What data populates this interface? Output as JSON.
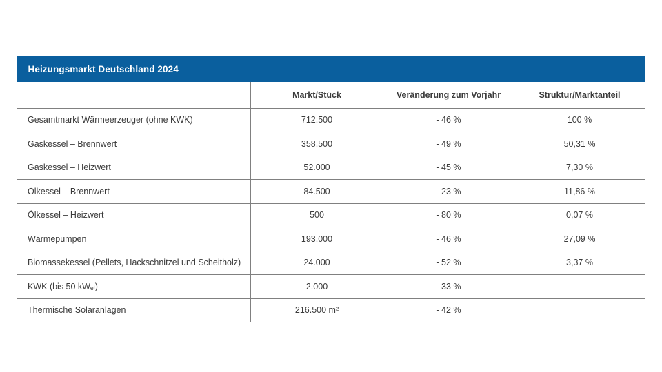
{
  "title": "Heizungsmarkt Deutschland 2024",
  "columns": {
    "col0": "",
    "col1": "Markt/Stück",
    "col2": "Veränderung zum Vorjahr",
    "col3": "Struktur/Marktanteil"
  },
  "rows": [
    {
      "label": "Gesamtmarkt Wärmeerzeuger (ohne KWK)",
      "markt": "712.500",
      "veraenderung": "- 46 %",
      "struktur": "100 %"
    },
    {
      "label": "Gaskessel – Brennwert",
      "markt": "358.500",
      "veraenderung": "- 49 %",
      "struktur": "50,31 %"
    },
    {
      "label": "Gaskessel – Heizwert",
      "markt": "52.000",
      "veraenderung": "- 45 %",
      "struktur": "7,30 %"
    },
    {
      "label": "Ölkessel – Brennwert",
      "markt": "84.500",
      "veraenderung": "- 23 %",
      "struktur": "11,86 %"
    },
    {
      "label": "Ölkessel – Heizwert",
      "markt": "500",
      "veraenderung": "- 80 %",
      "struktur": "0,07 %"
    },
    {
      "label": "Wärmepumpen",
      "markt": "193.000",
      "veraenderung": "- 46 %",
      "struktur": "27,09 %"
    },
    {
      "label": "Biomassekessel (Pellets, Hackschnitzel und Scheitholz)",
      "markt": "24.000",
      "veraenderung": "- 52 %",
      "struktur": "3,37 %"
    },
    {
      "label": "KWK (bis 50 kWₑₗ)",
      "markt": "2.000",
      "veraenderung": "- 33 %",
      "struktur": ""
    },
    {
      "label": "Thermische Solaranlagen",
      "markt": "216.500 m²",
      "veraenderung": "- 42 %",
      "struktur": ""
    }
  ],
  "colors": {
    "header_blue": "#0a5f9e",
    "border_gray": "#808080",
    "text_gray": "#3b3b3b"
  }
}
